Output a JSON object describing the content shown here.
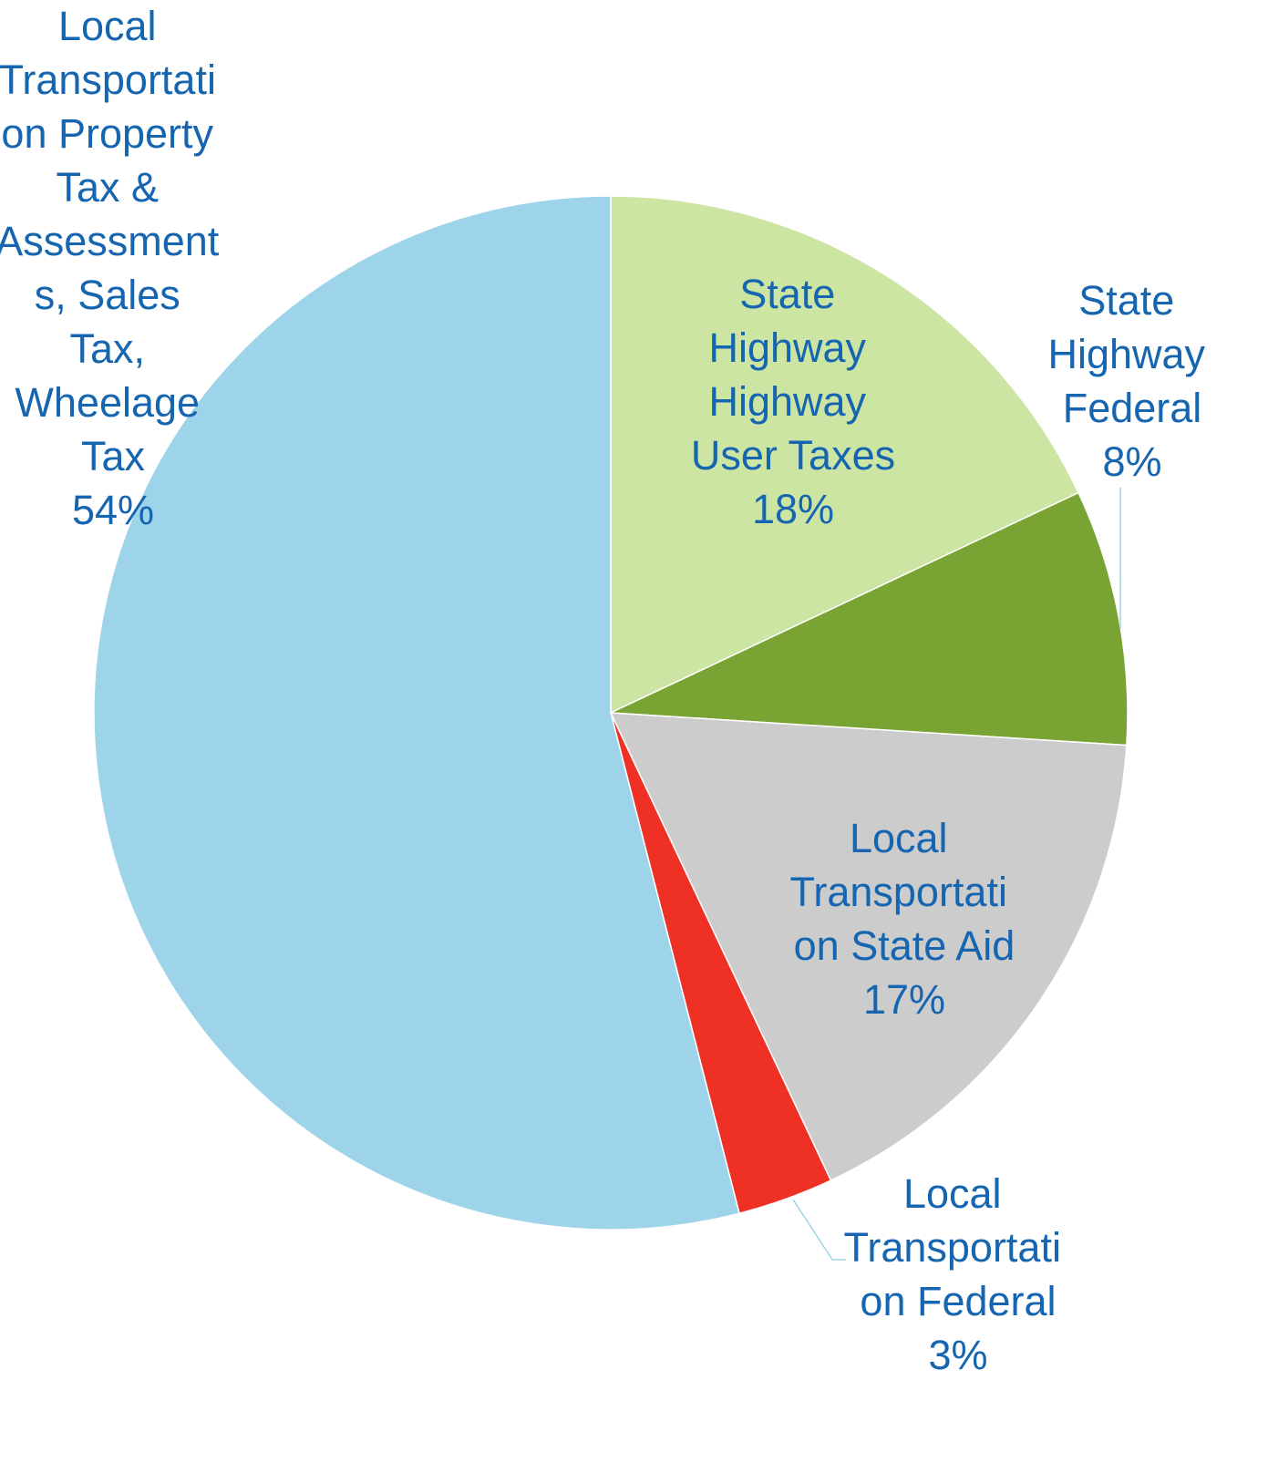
{
  "chart_data": {
    "type": "pie",
    "categories": [
      "State Highway Highway User Taxes",
      "State Highway Federal",
      "Local Transportation State Aid",
      "Local Transportation Federal",
      "Local Transportation Property Tax & Assessments, Sales Tax, Wheelage Tax"
    ],
    "values": [
      18,
      8,
      17,
      3,
      54
    ],
    "value_labels": [
      "18%",
      "8%",
      "17%",
      "3%",
      "54%"
    ],
    "colors": [
      "#cde5a3",
      "#79a332",
      "#cccccc",
      "#ee3124",
      "#9dd4ea"
    ]
  }
}
